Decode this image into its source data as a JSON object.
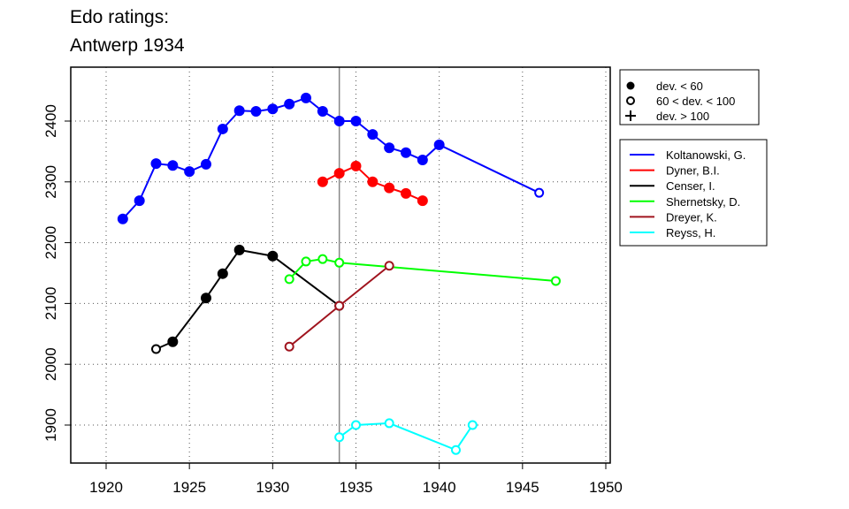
{
  "chart_data": {
    "type": "line",
    "title": [
      "Edo ratings:",
      "Antwerp 1934"
    ],
    "xlabel": "",
    "ylabel": "",
    "xlim": [
      1918,
      1951
    ],
    "ylim": [
      1840,
      2465
    ],
    "xticks": [
      1920,
      1925,
      1930,
      1935,
      1940,
      1945,
      1950
    ],
    "yticks": [
      1900,
      2000,
      2100,
      2200,
      2300,
      2400
    ],
    "grid": true,
    "reference_line_x": 1934,
    "marker_legend": [
      {
        "marker": "filled-circle",
        "label": "dev. < 60"
      },
      {
        "marker": "open-circle",
        "label": "60 < dev. < 100"
      },
      {
        "marker": "plus",
        "label": "dev. > 100"
      }
    ],
    "legend_placement": "right",
    "series": [
      {
        "name": "Koltanowski, G.",
        "color": "#0000ff",
        "x": [
          1921,
          1922,
          1923,
          1924,
          1925,
          1926,
          1927,
          1928,
          1929,
          1930,
          1931,
          1932,
          1933,
          1934,
          1935,
          1936,
          1937,
          1938,
          1939,
          1940,
          1946
        ],
        "y": [
          2239,
          2269,
          2330,
          2327,
          2317,
          2329,
          2387,
          2417,
          2416,
          2420,
          2428,
          2438,
          2416,
          2400,
          2400,
          2378,
          2356,
          2348,
          2336,
          2361,
          2282
        ],
        "marker": [
          "f",
          "f",
          "f",
          "f",
          "f",
          "f",
          "f",
          "f",
          "f",
          "f",
          "f",
          "f",
          "f",
          "f",
          "f",
          "f",
          "f",
          "f",
          "f",
          "f",
          "o"
        ]
      },
      {
        "name": "Dyner, B.I.",
        "color": "#ff0000",
        "x": [
          1933,
          1934,
          1935,
          1936,
          1937,
          1938,
          1939
        ],
        "y": [
          2300,
          2314,
          2326,
          2300,
          2290,
          2281,
          2269
        ],
        "marker": [
          "f",
          "f",
          "f",
          "f",
          "f",
          "f",
          "f"
        ]
      },
      {
        "name": "Censer, I.",
        "color": "#000000",
        "x": [
          1923,
          1924,
          1926,
          1927,
          1928,
          1930,
          1934
        ],
        "y": [
          2025,
          2037,
          2109,
          2149,
          2188,
          2178,
          2096
        ],
        "marker": [
          "o",
          "f",
          "f",
          "f",
          "f",
          "f",
          "o"
        ]
      },
      {
        "name": "Shernetsky, D.",
        "color": "#00ff00",
        "x": [
          1931,
          1932,
          1933,
          1934,
          1947
        ],
        "y": [
          2140,
          2169,
          2173,
          2167,
          2137
        ],
        "marker": [
          "o",
          "o",
          "o",
          "o",
          "o"
        ]
      },
      {
        "name": "Dreyer, K.",
        "color": "#a0141e",
        "x": [
          1931,
          1934,
          1937
        ],
        "y": [
          2029,
          2096,
          2162
        ],
        "marker": [
          "o",
          "o",
          "o"
        ]
      },
      {
        "name": "Reyss, H.",
        "color": "#00ffff",
        "x": [
          1934,
          1935,
          1937,
          1941,
          1942
        ],
        "y": [
          1880,
          1900,
          1903,
          1859,
          1900
        ],
        "marker": [
          "o",
          "o",
          "o",
          "o",
          "o"
        ]
      }
    ]
  }
}
